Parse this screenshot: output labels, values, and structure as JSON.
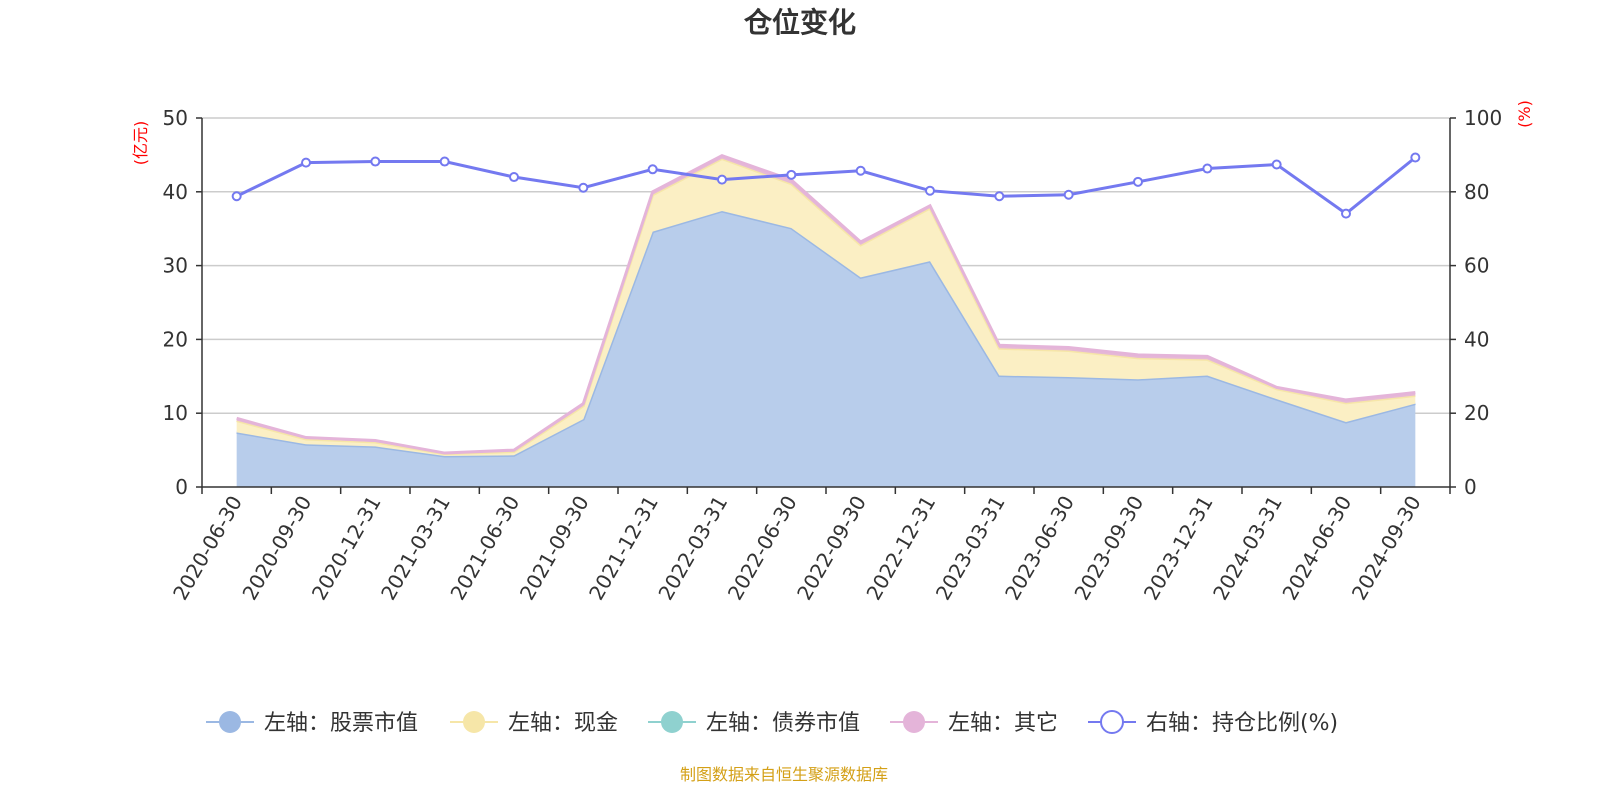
{
  "chart_data": {
    "type": "area",
    "title": "仓位变化",
    "left_unit": "(亿元)",
    "right_unit": "(%)",
    "source": "制图数据来自恒生聚源数据库",
    "categories": [
      "2020-06-30",
      "2020-09-30",
      "2020-12-31",
      "2021-03-31",
      "2021-06-30",
      "2021-09-30",
      "2021-12-31",
      "2022-03-31",
      "2022-06-30",
      "2022-09-30",
      "2022-12-31",
      "2023-03-31",
      "2023-06-30",
      "2023-09-30",
      "2023-12-31",
      "2024-03-31",
      "2024-06-30",
      "2024-09-30"
    ],
    "left_axis": {
      "min": 0,
      "max": 50,
      "ticks": [
        "0",
        "10",
        "20",
        "30",
        "40",
        "50"
      ]
    },
    "right_axis": {
      "min": 0,
      "max": 100,
      "ticks": [
        "0",
        "20",
        "40",
        "60",
        "80",
        "100"
      ]
    },
    "series": [
      {
        "name": "左轴：股票市值",
        "axis": "left",
        "color": "#9bb8e3",
        "fill": "#b8cdeb",
        "values": [
          7.4,
          5.8,
          5.5,
          4.2,
          4.3,
          9.2,
          34.6,
          37.4,
          35.1,
          28.4,
          30.6,
          15.1,
          14.9,
          14.6,
          15.1,
          11.9,
          8.8,
          11.3
        ]
      },
      {
        "name": "左轴：现金",
        "axis": "left",
        "color": "#f6e6a8",
        "fill": "#fbefc4",
        "values": [
          1.6,
          0.7,
          0.6,
          0.3,
          0.5,
          1.8,
          5.0,
          7.1,
          6.0,
          4.4,
          7.2,
          3.7,
          3.6,
          2.9,
          2.2,
          1.4,
          2.6,
          1.1
        ]
      },
      {
        "name": "左轴：债券市值",
        "axis": "left",
        "color": "#8fd1cf",
        "fill": "#8fd1cf",
        "values": [
          0,
          0,
          0,
          0,
          0,
          0,
          0,
          0,
          0,
          0,
          0,
          0,
          0,
          0,
          0,
          0,
          0,
          0
        ]
      },
      {
        "name": "左轴：其它",
        "axis": "left",
        "color": "#e4b4d9",
        "fill": "#e4b4d9",
        "values": [
          0.3,
          0.2,
          0.2,
          0.1,
          0.2,
          0.3,
          0.4,
          0.4,
          0.5,
          0.4,
          0.3,
          0.4,
          0.4,
          0.4,
          0.4,
          0.2,
          0.4,
          0.4
        ]
      },
      {
        "name": "右轴：持仓比例(%)",
        "axis": "right",
        "color": "#7479f0",
        "values": [
          78.8,
          87.9,
          88.2,
          88.2,
          84.0,
          81.1,
          86.1,
          83.3,
          84.6,
          85.7,
          80.3,
          78.8,
          79.2,
          82.7,
          86.3,
          87.4,
          74.1,
          89.3
        ]
      }
    ]
  }
}
